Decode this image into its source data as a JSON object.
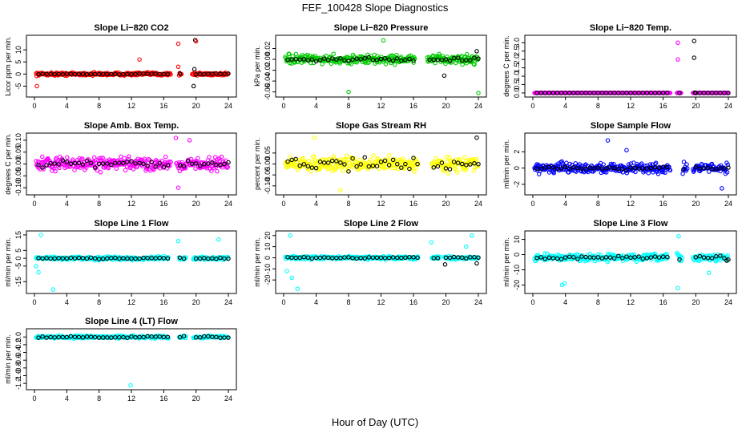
{
  "figure": {
    "title": "FEF_100428  Slope Diagnostics",
    "xlabel": "Hour of Day (UTC)"
  },
  "chart_data": [
    {
      "type": "scatter",
      "title": "Slope Li−820 CO2",
      "ylabel": "Licor ppm per min.",
      "color": "#ff0000",
      "xlim": [
        0,
        24
      ],
      "ylim": [
        -8.5,
        15
      ],
      "xticks": [
        0,
        4,
        8,
        12,
        16,
        20,
        24
      ],
      "yticks": [
        -5,
        0,
        5,
        10
      ],
      "ytick_labels": [
        "-5",
        "0",
        "5",
        "10"
      ],
      "gaps": [
        [
          16.9,
          17.9
        ],
        [
          18.2,
          19.5
        ]
      ],
      "center": 0,
      "spread": 0.9,
      "black_spread": 0.3,
      "outliers": [
        [
          17.8,
          12.5,
          "c"
        ],
        [
          19.9,
          14,
          "k"
        ],
        [
          20,
          13.5,
          "c"
        ],
        [
          19.7,
          -5,
          "k"
        ],
        [
          19.8,
          2,
          "k"
        ],
        [
          0.3,
          -5,
          "c"
        ],
        [
          13,
          6,
          "c"
        ],
        [
          17.8,
          3,
          "c"
        ]
      ]
    },
    {
      "type": "scatter",
      "title": "Slope Li−820 Pressure",
      "ylabel": "kPa per min.",
      "color": "#00cc00",
      "xlim": [
        0,
        24
      ],
      "ylim": [
        -0.065,
        0.04
      ],
      "xticks": [
        0,
        4,
        8,
        12,
        16,
        20,
        24
      ],
      "yticks": [
        -0.06,
        -0.04,
        -0.02,
        0,
        0.02
      ],
      "ytick_labels": [
        "-0.06",
        "-0.04",
        "-0.02",
        "0.00",
        "0.02"
      ],
      "gaps": [
        [
          16.2,
          17.7
        ]
      ],
      "center": 0,
      "spread": 0.012,
      "black_spread": 0.005,
      "outliers": [
        [
          8,
          -0.06,
          "c"
        ],
        [
          24,
          -0.062,
          "c"
        ],
        [
          12.3,
          0.035,
          "c"
        ],
        [
          23.8,
          0.015,
          "k"
        ],
        [
          19.8,
          -0.03,
          "k"
        ]
      ]
    },
    {
      "type": "scatter",
      "title": "Slope Li−820 Temp.",
      "ylabel": "degrees C per min.",
      "color": "#ff00ff",
      "xlim": [
        0,
        24
      ],
      "ylim": [
        -0.1,
        3.3
      ],
      "xticks": [
        0,
        4,
        8,
        12,
        16,
        20,
        24
      ],
      "yticks": [
        0,
        0.5,
        1,
        1.5,
        2,
        2.5,
        3
      ],
      "ytick_labels": [
        "0.0",
        "0.5",
        "1.0",
        "1.5",
        "2.0",
        "2.5",
        "3.0"
      ],
      "gaps": [
        [
          16.9,
          17.7
        ],
        [
          18.2,
          19.6
        ]
      ],
      "center": 0,
      "spread": 0.0,
      "black_spread": 0.0,
      "outliers": [
        [
          17.8,
          3.0,
          "c"
        ],
        [
          17.8,
          2.0,
          "c"
        ],
        [
          19.8,
          3.1,
          "k"
        ],
        [
          19.8,
          2.1,
          "k"
        ],
        [
          19.9,
          0.02,
          "k"
        ]
      ]
    },
    {
      "type": "scatter",
      "title": "Slope Amb. Box Temp.",
      "ylabel": "degrees C per min.",
      "color": "#ff00ff",
      "xlim": [
        0,
        24
      ],
      "ylim": [
        -0.12,
        0.12
      ],
      "xticks": [
        0,
        4,
        8,
        12,
        16,
        20,
        24
      ],
      "yticks": [
        -0.1,
        -0.05,
        0,
        0.05,
        0.1
      ],
      "ytick_labels": [
        "-0.10",
        "-0.05",
        "0.00",
        "0.05",
        "0.10"
      ],
      "gaps": [
        [
          16.9,
          17.5
        ]
      ],
      "center": 0,
      "spread": 0.04,
      "black_spread": 0.02,
      "outliers": [
        [
          17.8,
          -0.1,
          "c"
        ],
        [
          19.2,
          0.1,
          "c"
        ],
        [
          17.5,
          0.11,
          "c"
        ]
      ]
    },
    {
      "type": "scatter",
      "title": "Slope Gas Stream RH",
      "ylabel": "percent per min.",
      "color": "#ffff00",
      "xlim": [
        0,
        24
      ],
      "ylim": [
        -0.13,
        0.13
      ],
      "xticks": [
        0,
        4,
        8,
        12,
        16,
        20,
        24
      ],
      "yticks": [
        -0.1,
        -0.05,
        0,
        0.05
      ],
      "ytick_labels": [
        "-0.10",
        "-0.05",
        "0.00",
        "0.05"
      ],
      "gaps": [
        [
          16.6,
          18.2
        ]
      ],
      "center": 0,
      "spread": 0.045,
      "black_spread": 0.04,
      "outliers": [
        [
          3.8,
          0.12,
          "c"
        ],
        [
          23.8,
          0.12,
          "k"
        ],
        [
          7,
          -0.12,
          "c"
        ]
      ]
    },
    {
      "type": "scatter",
      "title": "Slope Sample Flow",
      "ylabel": "ml/min per min.",
      "color": "#0000ff",
      "xlim": [
        0,
        24
      ],
      "ylim": [
        -3,
        4
      ],
      "xticks": [
        0,
        4,
        8,
        12,
        16,
        20,
        24
      ],
      "yticks": [
        -2,
        0,
        2
      ],
      "ytick_labels": [
        "-2",
        "0",
        "2"
      ],
      "gaps": [
        [
          16.9,
          18.4
        ],
        [
          19,
          19.6
        ]
      ],
      "center": 0,
      "spread": 0.9,
      "black_spread": 0.3,
      "outliers": [
        [
          9.2,
          3.4,
          "c"
        ],
        [
          23.2,
          -2.5,
          "c"
        ],
        [
          11.5,
          2.2,
          "c"
        ]
      ]
    },
    {
      "type": "scatter",
      "title": "Slope Line 1 Flow",
      "ylabel": "ml/min per min.",
      "color": "#00ffff",
      "xlim": [
        0,
        24
      ],
      "ylim": [
        -21,
        16
      ],
      "xticks": [
        0,
        4,
        8,
        12,
        16,
        20,
        24
      ],
      "yticks": [
        -15,
        -5,
        0,
        5,
        15
      ],
      "ytick_labels": [
        "-15",
        "-5",
        "0",
        "5",
        "15"
      ],
      "gaps": [
        [
          16.6,
          17.9
        ],
        [
          18.8,
          19.6
        ]
      ],
      "center": 0,
      "spread": 1.5,
      "black_spread": 0.6,
      "outliers": [
        [
          0.8,
          15,
          "c"
        ],
        [
          2.3,
          -20,
          "c"
        ],
        [
          17.8,
          11,
          "c"
        ],
        [
          0.5,
          -9,
          "c"
        ],
        [
          0.2,
          -5,
          "c"
        ],
        [
          22.8,
          12,
          "c"
        ]
      ]
    },
    {
      "type": "scatter",
      "title": "Slope Line 2 Flow",
      "ylabel": "ml/min per min.",
      "color": "#00ffff",
      "xlim": [
        0,
        24
      ],
      "ylim": [
        -30,
        22
      ],
      "xticks": [
        0,
        4,
        8,
        12,
        16,
        20,
        24
      ],
      "yticks": [
        -20,
        -10,
        0,
        10,
        20
      ],
      "ytick_labels": [
        "-20",
        "-10",
        "0",
        "10",
        "20"
      ],
      "gaps": [
        [
          16.6,
          18.2
        ],
        [
          19.3,
          19.8
        ]
      ],
      "center": 0,
      "spread": 2,
      "black_spread": 0.8,
      "outliers": [
        [
          1.7,
          -28,
          "c"
        ],
        [
          0.8,
          20,
          "c"
        ],
        [
          1,
          -18,
          "c"
        ],
        [
          0.4,
          -12,
          "c"
        ],
        [
          18.2,
          14,
          "c"
        ],
        [
          23.2,
          20,
          "c"
        ],
        [
          22.5,
          10,
          "c"
        ],
        [
          23.8,
          -5,
          "k"
        ],
        [
          19.9,
          -6,
          "k"
        ]
      ]
    },
    {
      "type": "scatter",
      "title": "Slope Line 3 Flow",
      "ylabel": "ml/min per min.",
      "color": "#00ffff",
      "xlim": [
        0,
        24
      ],
      "ylim": [
        -24,
        14
      ],
      "xticks": [
        0,
        4,
        8,
        12,
        16,
        20,
        24
      ],
      "yticks": [
        -20,
        -10,
        0,
        10
      ],
      "ytick_labels": [
        "-20",
        "-10",
        "0",
        "10"
      ],
      "gaps": [
        [
          16.6,
          17.7
        ],
        [
          18.4,
          19.6
        ]
      ],
      "center": -2,
      "spread": 3.5,
      "black_spread": 1.5,
      "outliers": [
        [
          17.9,
          12,
          "c"
        ],
        [
          17.8,
          -22,
          "c"
        ],
        [
          3.9,
          -19,
          "c"
        ],
        [
          3.6,
          -20,
          "c"
        ],
        [
          21.6,
          -12,
          "c"
        ],
        [
          23.8,
          -4,
          "k"
        ]
      ]
    },
    {
      "type": "scatter",
      "title": "Slope Line 4 (LT) Flow",
      "ylabel": "ml/min per min.",
      "color": "#00ffff",
      "xlim": [
        0,
        24
      ],
      "ylim": [
        -1.3,
        0.15
      ],
      "xticks": [
        0,
        4,
        8,
        12,
        16,
        20,
        24
      ],
      "yticks": [
        -1.2,
        -1.0,
        -0.8,
        -0.6,
        -0.4,
        -0.2,
        0
      ],
      "ytick_labels": [
        "-1.2",
        "-1.0",
        "-0.8",
        "-0.6",
        "-0.4",
        "-0.2",
        "0.0"
      ],
      "gaps": [
        [
          16.6,
          17.9
        ],
        [
          18.8,
          19.6
        ]
      ],
      "center": 0,
      "spread": 0.05,
      "black_spread": 0.03,
      "outliers": [
        [
          11.9,
          -1.25,
          "c"
        ]
      ]
    }
  ]
}
